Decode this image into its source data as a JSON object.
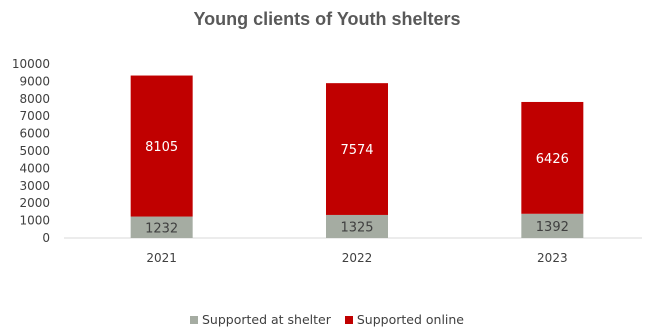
{
  "chart_data": {
    "type": "bar",
    "stacked": true,
    "title": "Young clients of Youth shelters",
    "categories": [
      "2021",
      "2022",
      "2023"
    ],
    "series": [
      {
        "name": "Supported at shelter",
        "values": [
          1232,
          1325,
          1392
        ],
        "color": "#a5aca2"
      },
      {
        "name": "Supported online",
        "values": [
          8105,
          7574,
          6426
        ],
        "color": "#c00000"
      }
    ],
    "ylim": [
      0,
      10000
    ],
    "yticks": [
      0,
      1000,
      2000,
      3000,
      4000,
      5000,
      6000,
      7000,
      8000,
      9000,
      10000
    ],
    "grid": false,
    "legend_position": "bottom",
    "data_labels": true
  }
}
